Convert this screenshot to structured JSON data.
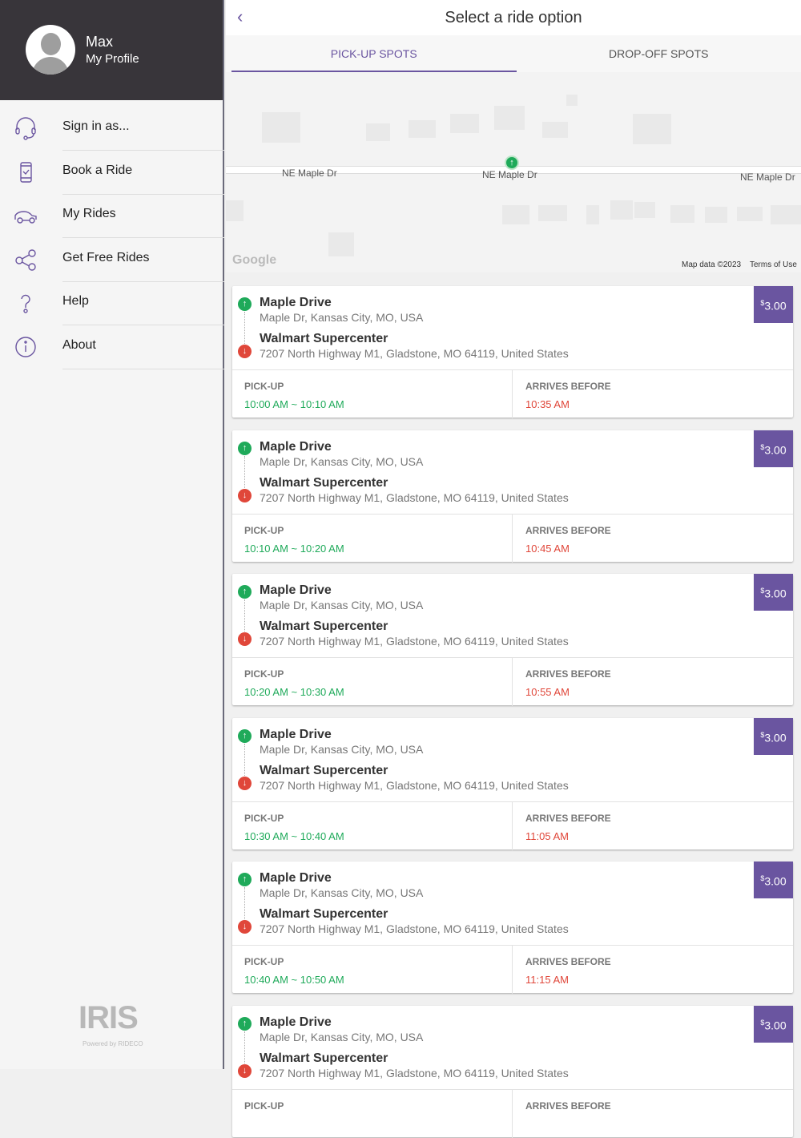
{
  "sidebar": {
    "profile": {
      "name": "Max",
      "link": "My Profile"
    },
    "items": [
      {
        "label": "Sign in as...",
        "icon": "headset-icon"
      },
      {
        "label": "Book a Ride",
        "icon": "phone-check-icon"
      },
      {
        "label": "My Rides",
        "icon": "car-icon"
      },
      {
        "label": "Get Free Rides",
        "icon": "share-icon"
      },
      {
        "label": "Help",
        "icon": "question-icon"
      },
      {
        "label": "About",
        "icon": "info-icon"
      }
    ],
    "logo": "IRIS",
    "powered_by": "Powered by RIDECO"
  },
  "header": {
    "title": "Select a ride option",
    "back_icon": "chevron-left-icon"
  },
  "tabs": [
    {
      "label": "PICK-UP SPOTS",
      "active": true
    },
    {
      "label": "DROP-OFF SPOTS",
      "active": false
    }
  ],
  "map": {
    "road_labels": [
      "NE Maple Dr",
      "NE Maple Dr",
      "NE Maple Dr"
    ],
    "google": "Google",
    "map_data": "Map data ©2023",
    "terms": "Terms of Use"
  },
  "labels": {
    "pickup": "PICK-UP",
    "arrives": "ARRIVES BEFORE",
    "currency": "$"
  },
  "colors": {
    "accent": "#6a55a0",
    "pickup": "#1faa5a",
    "dropoff": "#e0473a"
  },
  "rides": [
    {
      "pickup_name": "Maple Drive",
      "pickup_address": "Maple Dr, Kansas City, MO, USA",
      "dropoff_name": "Walmart Supercenter",
      "dropoff_address": "7207 North Highway M1, Gladstone, MO 64119, United States",
      "price": "3.00",
      "pickup_window": "10:00 AM ~ 10:10 AM",
      "arrives_before": "10:35 AM"
    },
    {
      "pickup_name": "Maple Drive",
      "pickup_address": "Maple Dr, Kansas City, MO, USA",
      "dropoff_name": "Walmart Supercenter",
      "dropoff_address": "7207 North Highway M1, Gladstone, MO 64119, United States",
      "price": "3.00",
      "pickup_window": "10:10 AM ~ 10:20 AM",
      "arrives_before": "10:45 AM"
    },
    {
      "pickup_name": "Maple Drive",
      "pickup_address": "Maple Dr, Kansas City, MO, USA",
      "dropoff_name": "Walmart Supercenter",
      "dropoff_address": "7207 North Highway M1, Gladstone, MO 64119, United States",
      "price": "3.00",
      "pickup_window": "10:20 AM ~ 10:30 AM",
      "arrives_before": "10:55 AM"
    },
    {
      "pickup_name": "Maple Drive",
      "pickup_address": "Maple Dr, Kansas City, MO, USA",
      "dropoff_name": "Walmart Supercenter",
      "dropoff_address": "7207 North Highway M1, Gladstone, MO 64119, United States",
      "price": "3.00",
      "pickup_window": "10:30 AM ~ 10:40 AM",
      "arrives_before": "11:05 AM"
    },
    {
      "pickup_name": "Maple Drive",
      "pickup_address": "Maple Dr, Kansas City, MO, USA",
      "dropoff_name": "Walmart Supercenter",
      "dropoff_address": "7207 North Highway M1, Gladstone, MO 64119, United States",
      "price": "3.00",
      "pickup_window": "10:40 AM ~ 10:50 AM",
      "arrives_before": "11:15 AM"
    },
    {
      "pickup_name": "Maple Drive",
      "pickup_address": "Maple Dr, Kansas City, MO, USA",
      "dropoff_name": "Walmart Supercenter",
      "dropoff_address": "7207 North Highway M1, Gladstone, MO 64119, United States",
      "price": "3.00",
      "pickup_window": "",
      "arrives_before": ""
    }
  ]
}
